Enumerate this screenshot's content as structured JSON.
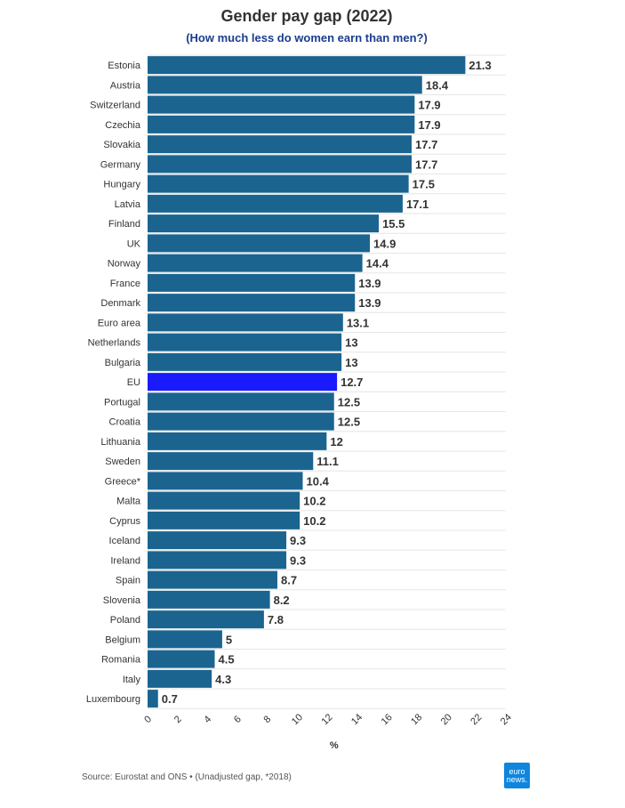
{
  "chart_data": {
    "type": "bar",
    "orientation": "horizontal",
    "title": "Gender pay gap (2022)",
    "subtitle": "(How much less do women earn than men?)",
    "xlabel": "%",
    "ylabel": "",
    "xlim": [
      0,
      24
    ],
    "xticks": [
      "0",
      "2",
      "4",
      "6",
      "8",
      "10",
      "12",
      "14",
      "16",
      "18",
      "20",
      "22",
      "24"
    ],
    "categories": [
      "Estonia",
      "Austria",
      "Switzerland",
      "Czechia",
      "Slovakia",
      "Germany",
      "Hungary",
      "Latvia",
      "Finland",
      "UK",
      "Norway",
      "France",
      "Denmark",
      "Euro area",
      "Netherlands",
      "Bulgaria",
      "EU",
      "Portugal",
      "Croatia",
      "Lithuania",
      "Sweden",
      "Greece*",
      "Malta",
      "Cyprus",
      "Iceland",
      "Ireland",
      "Spain",
      "Slovenia",
      "Poland",
      "Belgium",
      "Romania",
      "Italy",
      "Luxembourg"
    ],
    "values": [
      21.3,
      18.4,
      17.9,
      17.9,
      17.7,
      17.7,
      17.5,
      17.1,
      15.5,
      14.9,
      14.4,
      13.9,
      13.9,
      13.1,
      13,
      13,
      12.7,
      12.5,
      12.5,
      12,
      11.1,
      10.4,
      10.2,
      10.2,
      9.3,
      9.3,
      8.7,
      8.2,
      7.8,
      5,
      4.5,
      4.3,
      0.7
    ],
    "value_labels": [
      "21.3",
      "18.4",
      "17.9",
      "17.9",
      "17.7",
      "17.7",
      "17.5",
      "17.1",
      "15.5",
      "14.9",
      "14.4",
      "13.9",
      "13.9",
      "13.1",
      "13",
      "13",
      "12.7",
      "12.5",
      "12.5",
      "12",
      "11.1",
      "10.4",
      "10.2",
      "10.2",
      "9.3",
      "9.3",
      "8.7",
      "8.2",
      "7.8",
      "5",
      "4.5",
      "4.3",
      "0.7"
    ],
    "highlight_category": "EU",
    "colors": {
      "bar": "#1b6490",
      "highlight": "#1a1aff",
      "grid": "#e6e6e6"
    },
    "grid": true
  },
  "footer": {
    "source": "Source: Eurostat and ONS • (Unadjusted gap, *2018)",
    "logo_line1": "euro",
    "logo_line2": "news."
  }
}
